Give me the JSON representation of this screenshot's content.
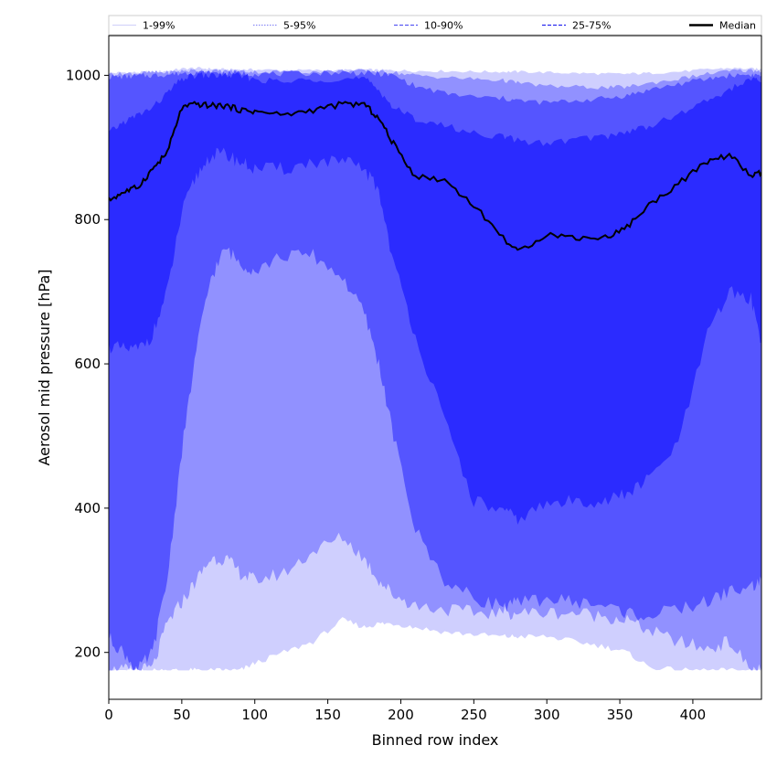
{
  "chart_data": {
    "type": "area",
    "xlabel": "Binned row index",
    "ylabel": "Aerosol mid pressure [hPa]",
    "xlim": [
      0,
      447
    ],
    "ylim": [
      135,
      1055
    ],
    "xticks": [
      0,
      50,
      100,
      150,
      200,
      250,
      300,
      350,
      400
    ],
    "yticks": [
      200,
      400,
      600,
      800,
      1000
    ],
    "grid": false,
    "legend": {
      "placement": "top",
      "entries": [
        {
          "label": "1-99%",
          "color": "#d4d4fa",
          "style": "solid"
        },
        {
          "label": "5-95%",
          "color": "#8c8cf5",
          "style": "dotted"
        },
        {
          "label": "10-90%",
          "color": "#5a5af2",
          "style": "dashed"
        },
        {
          "label": "25-75%",
          "color": "#2a2aef",
          "style": "dashed"
        },
        {
          "label": "Median",
          "color": "#000000",
          "style": "solid"
        }
      ]
    },
    "x": [
      0,
      10,
      20,
      30,
      40,
      50,
      60,
      70,
      80,
      90,
      100,
      120,
      140,
      160,
      175,
      185,
      195,
      210,
      230,
      250,
      270,
      280,
      300,
      320,
      340,
      355,
      370,
      390,
      410,
      425,
      440,
      447
    ],
    "bands": [
      {
        "name": "1-99%",
        "color": "#cfcffe",
        "low": [
          175,
          175,
          175,
          175,
          175,
          175,
          175,
          175,
          175,
          175,
          185,
          200,
          215,
          245,
          235,
          240,
          240,
          235,
          228,
          225,
          222,
          222,
          222,
          215,
          208,
          200,
          180,
          175,
          175,
          175,
          175,
          175
        ],
        "high": [
          1003,
          1004,
          1004,
          1005,
          1006,
          1009,
          1010,
          1009,
          1008,
          1008,
          1008,
          1007,
          1007,
          1007,
          1008,
          1007,
          1007,
          1006,
          1006,
          1005,
          1005,
          1005,
          1004,
          1003,
          1002,
          1002,
          1003,
          1005,
          1008,
          1010,
          1009,
          1008
        ]
      },
      {
        "name": "5-95%",
        "color": "#9191ff",
        "low": [
          175,
          175,
          175,
          178,
          240,
          270,
          300,
          330,
          330,
          310,
          300,
          310,
          340,
          360,
          330,
          300,
          280,
          265,
          260,
          255,
          255,
          255,
          255,
          255,
          250,
          245,
          230,
          215,
          205,
          215,
          175,
          175
        ],
        "high": [
          1002,
          1002,
          1003,
          1004,
          1004,
          1006,
          1007,
          1006,
          1006,
          1006,
          1005,
          1005,
          1005,
          1006,
          1006,
          1005,
          1004,
          1000,
          997,
          995,
          993,
          990,
          985,
          984,
          983,
          984,
          989,
          995,
          1002,
          1006,
          1007,
          1006
        ]
      },
      {
        "name": "10-90%",
        "color": "#5555ff",
        "low": [
          220,
          200,
          175,
          200,
          300,
          480,
          620,
          720,
          760,
          740,
          730,
          750,
          750,
          720,
          670,
          600,
          500,
          370,
          300,
          275,
          265,
          268,
          275,
          270,
          265,
          255,
          250,
          260,
          270,
          285,
          290,
          300
        ],
        "high": [
          998,
          998,
          999,
          1000,
          1001,
          1003,
          1004,
          1003,
          1003,
          1003,
          1002,
          1002,
          1003,
          1004,
          1003,
          1002,
          1000,
          985,
          975,
          970,
          968,
          965,
          962,
          965,
          968,
          972,
          980,
          988,
          995,
          1000,
          1001,
          1000
        ]
      },
      {
        "name": "25-75%",
        "color": "#2b2bff",
        "low": [
          625,
          620,
          620,
          640,
          700,
          810,
          860,
          890,
          890,
          880,
          870,
          870,
          880,
          880,
          870,
          840,
          740,
          640,
          520,
          410,
          395,
          385,
          405,
          410,
          410,
          420,
          440,
          490,
          640,
          700,
          690,
          630
        ],
        "high": [
          920,
          935,
          945,
          955,
          975,
          995,
          1000,
          1000,
          1000,
          999,
          995,
          990,
          995,
          995,
          995,
          980,
          955,
          940,
          930,
          920,
          915,
          910,
          905,
          912,
          915,
          922,
          930,
          945,
          965,
          980,
          995,
          990
        ]
      }
    ],
    "median": [
      827,
      838,
      845,
      870,
      893,
      955,
      960,
      958,
      958,
      952,
      950,
      945,
      952,
      960,
      960,
      940,
      905,
      860,
      855,
      820,
      775,
      755,
      780,
      775,
      775,
      790,
      820,
      850,
      880,
      890,
      860,
      865
    ]
  }
}
